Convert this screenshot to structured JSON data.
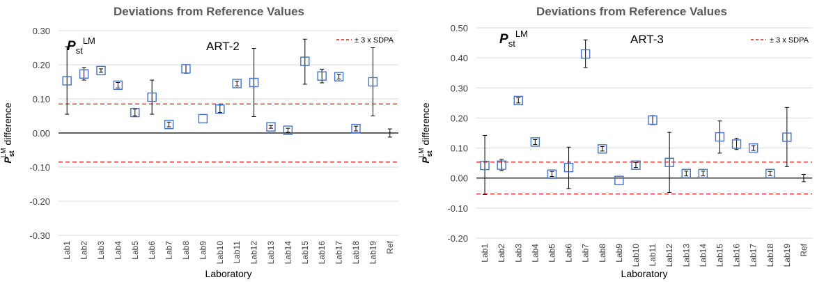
{
  "chart_data": [
    {
      "type": "scatter",
      "title": "Deviations from Reference Values",
      "xlabel": "Laboratory",
      "ylabel_main": "P",
      "ylabel_sub": "st",
      "ylabel_sup": "LM",
      "ylabel_rest": " difference",
      "panel_label": "ART-2",
      "param_main": "P",
      "param_sub": "st",
      "param_sup": "LM",
      "legend_label": "± 3 x SDPA",
      "ylim": [
        -0.3,
        0.3
      ],
      "yticks": [
        -0.3,
        -0.2,
        -0.1,
        0.0,
        0.1,
        0.2,
        0.3
      ],
      "ytick_labels": [
        "-0.30",
        "-0.20",
        "-0.10",
        "0.00",
        "0.10",
        "0.20",
        "0.30"
      ],
      "categories": [
        "Lab1",
        "Lab2",
        "Lab3",
        "Lab4",
        "Lab5",
        "Lab6",
        "Lab7",
        "Lab8",
        "Lab9",
        "Lab10",
        "Lab11",
        "Lab12",
        "Lab13",
        "Lab14",
        "Lab15",
        "Lab16",
        "Lab17",
        "Lab18",
        "Lab19",
        "Ref"
      ],
      "values": [
        0.153,
        0.173,
        0.183,
        0.14,
        0.06,
        0.105,
        0.025,
        0.188,
        0.042,
        0.07,
        0.145,
        0.148,
        0.018,
        0.008,
        0.21,
        0.167,
        0.165,
        0.013,
        0.15,
        0.0
      ],
      "err_low": [
        0.055,
        0.155,
        0.178,
        0.132,
        0.05,
        0.055,
        0.018,
        0.175,
        0.042,
        0.06,
        0.138,
        0.048,
        0.014,
        0.002,
        0.143,
        0.147,
        0.158,
        0.006,
        0.05,
        -0.012
      ],
      "err_high": [
        0.253,
        0.192,
        0.188,
        0.148,
        0.07,
        0.155,
        0.032,
        0.2,
        0.042,
        0.082,
        0.152,
        0.248,
        0.022,
        0.014,
        0.275,
        0.187,
        0.172,
        0.02,
        0.25,
        0.012
      ],
      "threshold": 0.085,
      "colors": {
        "marker": "#4472C4",
        "threshold": "#E0201B",
        "axis": "#000000",
        "grid": "#D9D9D9",
        "title": "#595959"
      }
    },
    {
      "type": "scatter",
      "title": "Deviations from Reference Values",
      "xlabel": "Laboratory",
      "ylabel_main": "P",
      "ylabel_sub": "st",
      "ylabel_sup": "LM",
      "ylabel_rest": " difference",
      "panel_label": "ART-3",
      "param_main": "P",
      "param_sub": "st",
      "param_sup": "LM",
      "legend_label": "± 3 x SDPA",
      "ylim": [
        -0.2,
        0.5
      ],
      "yticks": [
        -0.2,
        -0.1,
        0.0,
        0.1,
        0.2,
        0.3,
        0.4,
        0.5
      ],
      "ytick_labels": [
        "-0.20",
        "-0.10",
        "0.00",
        "0.10",
        "0.20",
        "0.30",
        "0.40",
        "0.50"
      ],
      "categories": [
        "Lab1",
        "Lab2",
        "Lab3",
        "Lab4",
        "Lab5",
        "Lab6",
        "Lab7",
        "Lab8",
        "Lab9",
        "Lab10",
        "Lab11",
        "Lab12",
        "Lab13",
        "Lab14",
        "Lab15",
        "Lab16",
        "Lab17",
        "Lab18",
        "Lab19",
        "Ref"
      ],
      "values": [
        0.042,
        0.043,
        0.258,
        0.12,
        0.013,
        0.035,
        0.413,
        0.097,
        -0.008,
        0.043,
        0.193,
        0.052,
        0.015,
        0.015,
        0.137,
        0.113,
        0.1,
        0.015,
        0.136,
        0.0
      ],
      "err_low": [
        -0.055,
        0.025,
        0.25,
        0.112,
        0.005,
        -0.035,
        0.368,
        0.09,
        -0.008,
        0.035,
        0.178,
        -0.048,
        0.007,
        0.007,
        0.083,
        0.095,
        0.092,
        0.008,
        0.038,
        -0.012
      ],
      "err_high": [
        0.142,
        0.062,
        0.267,
        0.128,
        0.022,
        0.103,
        0.46,
        0.105,
        -0.008,
        0.052,
        0.208,
        0.152,
        0.023,
        0.023,
        0.19,
        0.132,
        0.108,
        0.022,
        0.235,
        0.012
      ],
      "threshold": 0.053,
      "colors": {
        "marker": "#4472C4",
        "threshold": "#E0201B",
        "axis": "#000000",
        "grid": "#D9D9D9",
        "title": "#595959"
      }
    }
  ]
}
